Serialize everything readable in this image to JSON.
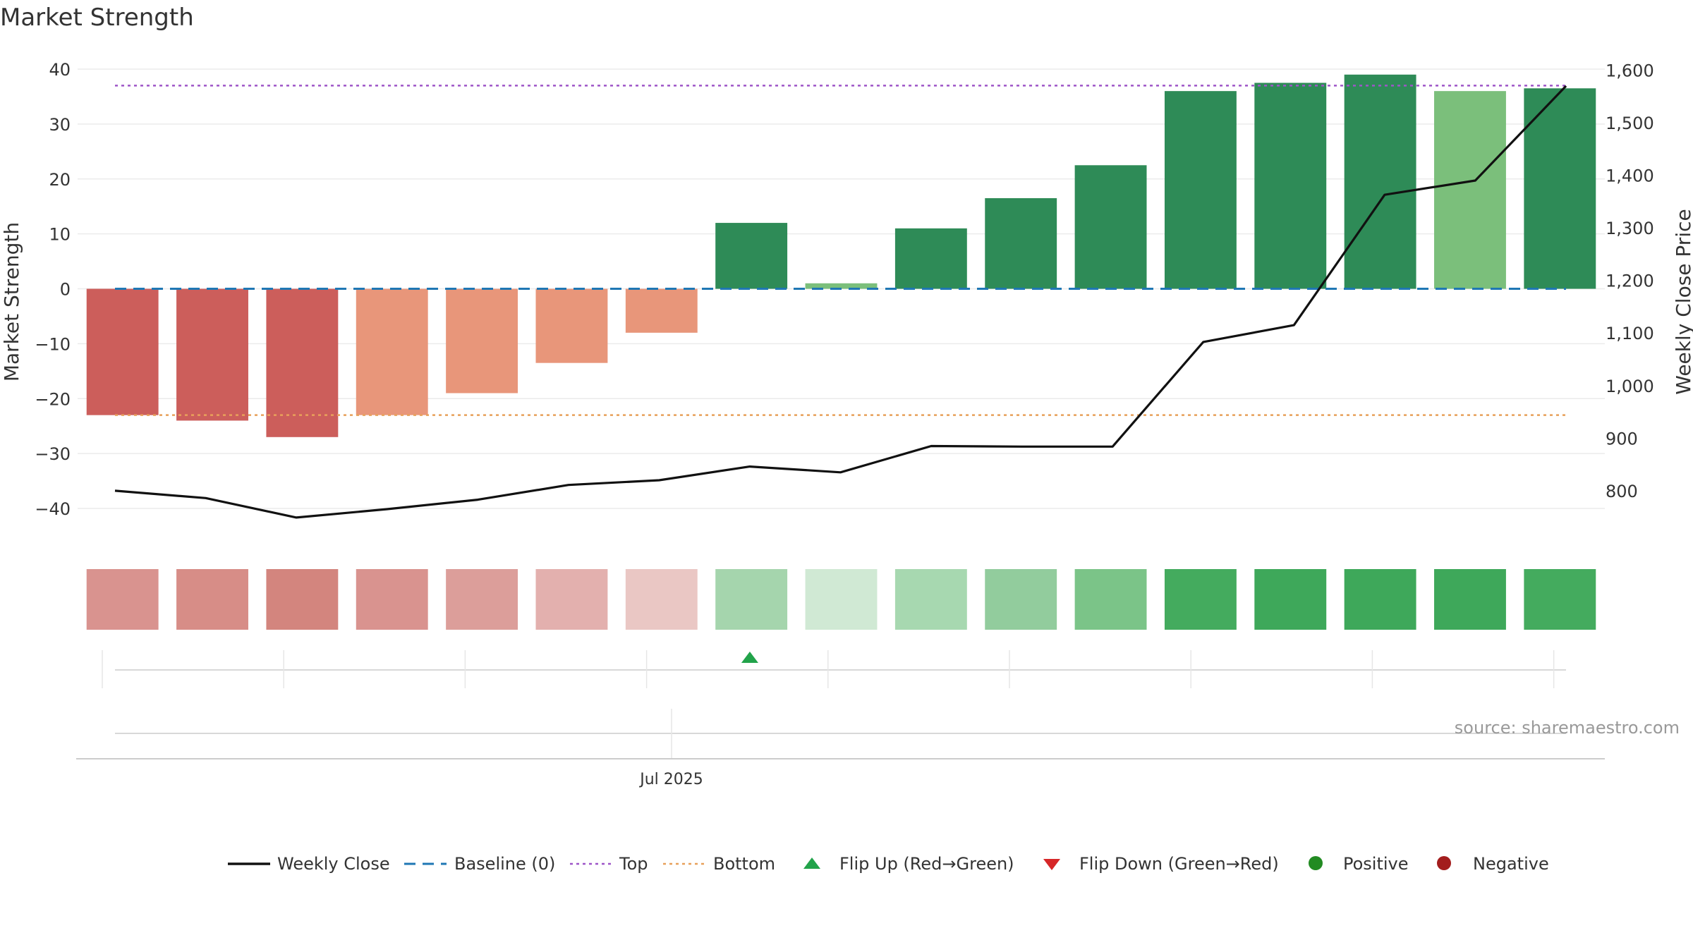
{
  "chart_data": {
    "type": "bar",
    "title": "Market Strength",
    "ylabel": "Market Strength",
    "y2label": "Weekly Close Price",
    "source": "source: sharemaestro.com",
    "xtick_label": "Jul 2025",
    "ylim": [
      -45,
      40
    ],
    "yticks": [
      40,
      30,
      20,
      10,
      0,
      -10,
      -20,
      -30,
      -40
    ],
    "ytick_labels": [
      "40",
      "30",
      "20",
      "10",
      "0",
      "−10",
      "−20",
      "−30",
      "−40"
    ],
    "y2lim": [
      714,
      1602
    ],
    "y2ticks": [
      1600,
      1500,
      1400,
      1300,
      1200,
      1100,
      1000,
      900,
      800
    ],
    "y2tick_labels": [
      "1,600",
      "1,500",
      "1,400",
      "1,300",
      "1,200",
      "1,100",
      "1,000",
      "900",
      "800"
    ],
    "top_level": 37,
    "bottom_level": -23,
    "baseline": 0,
    "strength": [
      -23,
      -24,
      -27,
      -23,
      -19,
      -13.5,
      -8,
      12,
      1,
      11,
      16.5,
      22.5,
      36,
      37.5,
      39,
      36,
      36.5
    ],
    "bar_colors": [
      "#cc5e5b",
      "#cc5e5b",
      "#cc5e5b",
      "#e8967a",
      "#e8967a",
      "#e8967a",
      "#e8967a",
      "#2e8b57",
      "#7bbf7b",
      "#2e8b57",
      "#2e8b57",
      "#2e8b57",
      "#2e8b57",
      "#2e8b57",
      "#2e8b57",
      "#7bbf7b",
      "#2e8b57"
    ],
    "weekly_close": [
      800,
      786,
      749,
      765,
      783,
      811,
      820,
      846,
      835,
      885,
      884,
      884,
      1083,
      1115,
      1363,
      1390,
      1570
    ],
    "heat_colors": [
      "#d9938f",
      "#d78d87",
      "#d3857e",
      "#d9938f",
      "#dc9e9a",
      "#e3b0ae",
      "#eac7c4",
      "#a5d5ad",
      "#d0e9d4",
      "#a7d8b0",
      "#92cc9d",
      "#7bc488",
      "#44ab5e",
      "#3ea85a",
      "#3ea85a",
      "#3ea85a",
      "#44ab5e"
    ],
    "flip_up_index": 7,
    "legend": [
      "Weekly Close",
      "Baseline (0)",
      "Top",
      "Bottom",
      "Flip Up (Red→Green)",
      "Flip Down (Green→Red)",
      "Positive",
      "Negative"
    ],
    "colors": {
      "weekly_close": "#111111",
      "baseline": "#1f77b4",
      "top": "#9e55c8",
      "bottom": "#e8a05a",
      "flip_up": "#22a34a",
      "flip_down": "#d62728",
      "positive": "#228b22",
      "negative": "#a31d1d"
    }
  }
}
